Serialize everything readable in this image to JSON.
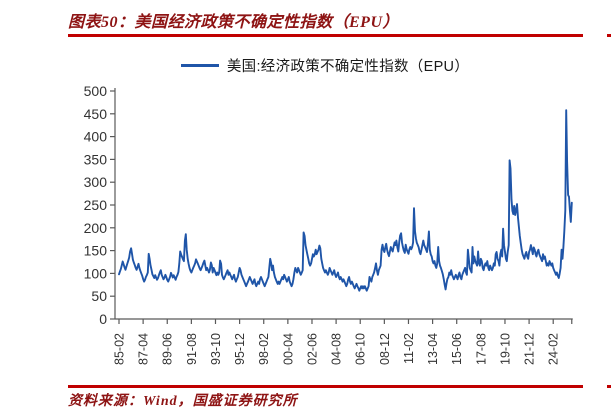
{
  "figure": {
    "title": "图表50：美国经济政策不确定性指数（EPU）",
    "source": "资料来源：Wind，国盛证券研究所"
  },
  "colors": {
    "rule_red": "#C00000",
    "title_red": "#8E1414",
    "line_blue": "#1F55A8",
    "axis_gray": "#595959",
    "label_color": "#333333"
  },
  "chart_data": {
    "type": "line",
    "title": "美国经济政策不确定性指数（EPU）",
    "legend": {
      "position": "top",
      "entries": [
        "美国:经济政策不确定性指数（EPU）"
      ]
    },
    "x_axis": {
      "start": "1985-02",
      "frequency": "monthly",
      "tick_interval_months": 26,
      "tick_labels": [
        "85-02",
        "87-04",
        "89-06",
        "91-08",
        "93-10",
        "95-12",
        "98-02",
        "00-04",
        "02-06",
        "04-08",
        "06-10",
        "08-12",
        "11-02",
        "13-04",
        "15-06",
        "17-08",
        "19-10",
        "21-12",
        "24-02"
      ]
    },
    "y_axis": {
      "min": 0,
      "max": 500,
      "tick_step": 50,
      "ticks": [
        0,
        50,
        100,
        150,
        200,
        250,
        300,
        350,
        400,
        450,
        500
      ]
    },
    "grid": false,
    "series": [
      {
        "name": "美国:经济政策不确定性指数（EPU）",
        "color": "#1F55A8",
        "values": [
          98,
          104,
          110,
          118,
          126,
          120,
          113,
          108,
          115,
          122,
          128,
          135,
          148,
          155,
          143,
          130,
          124,
          118,
          112,
          108,
          115,
          121,
          112,
          106,
          100,
          95,
          88,
          82,
          86,
          92,
          96,
          102,
          143,
          132,
          118,
          108,
          98,
          94,
          90,
          96,
          91,
          86,
          90,
          96,
          102,
          107,
          97,
          92,
          87,
          91,
          97,
          92,
          86,
          82,
          87,
          92,
          101,
          96,
          91,
          96,
          91,
          86,
          92,
          97,
          103,
          122,
          148,
          141,
          136,
          131,
          127,
          172,
          186,
          152,
          132,
          121,
          112,
          106,
          102,
          107,
          112,
          117,
          122,
          131,
          126,
          121,
          116,
          111,
          107,
          112,
          117,
          123,
          128,
          117,
          107,
          112,
          107,
          102,
          108,
          124,
          118,
          102,
          112,
          107,
          101,
          96,
          102,
          97,
          102,
          128,
          121,
          97,
          91,
          87,
          92,
          97,
          102,
          107,
          97,
          102,
          97,
          92,
          87,
          92,
          97,
          87,
          82,
          87,
          92,
          102,
          112,
          107,
          97,
          92,
          87,
          82,
          77,
          72,
          77,
          82,
          87,
          92,
          87,
          82,
          77,
          82,
          87,
          77,
          72,
          77,
          82,
          77,
          87,
          92,
          87,
          82,
          77,
          72,
          77,
          82,
          87,
          92,
          112,
          132,
          122,
          107,
          117,
          102,
          92,
          87,
          82,
          77,
          82,
          77,
          82,
          87,
          92,
          87,
          97,
          92,
          87,
          82,
          87,
          92,
          82,
          77,
          72,
          77,
          87,
          102,
          112,
          107,
          102,
          112,
          107,
          102,
          97,
          102,
          107,
          190,
          182,
          162,
          152,
          142,
          132,
          122,
          117,
          122,
          132,
          142,
          137,
          142,
          152,
          142,
          147,
          152,
          161,
          155,
          132,
          122,
          112,
          107,
          102,
          107,
          102,
          97,
          102,
          112,
          107,
          102,
          97,
          102,
          107,
          97,
          92,
          97,
          102,
          92,
          87,
          92,
          87,
          82,
          87,
          82,
          77,
          72,
          77,
          87,
          92,
          82,
          77,
          82,
          77,
          72,
          67,
          72,
          77,
          72,
          67,
          62,
          67,
          72,
          67,
          72,
          67,
          72,
          67,
          62,
          67,
          72,
          92,
          87,
          82,
          92,
          97,
          102,
          112,
          122,
          107,
          97,
          107,
          112,
          117,
          152,
          163,
          152,
          147,
          157,
          165,
          152,
          143,
          138,
          148,
          158,
          152,
          148,
          158,
          168,
          162,
          172,
          158,
          148,
          168,
          183,
          188,
          168,
          158,
          150,
          145,
          163,
          153,
          148,
          143,
          153,
          158,
          153,
          158,
          168,
          243,
          192,
          177,
          167,
          162,
          157,
          147,
          142,
          152,
          162,
          172,
          162,
          157,
          152,
          147,
          167,
          192,
          152,
          142,
          137,
          127,
          122,
          127,
          117,
          112,
          122,
          158,
          127,
          117,
          112,
          105,
          98,
          88,
          75,
          65,
          78,
          88,
          92,
          102,
          97,
          107,
          97,
          92,
          87,
          92,
          97,
          92,
          87,
          97,
          102,
          92,
          87,
          97,
          102,
          107,
          112,
          102,
          97,
          152,
          132,
          112,
          107,
          102,
          158,
          122,
          137,
          127,
          122,
          117,
          148,
          122,
          117,
          132,
          127,
          112,
          107,
          117,
          122,
          117,
          127,
          112,
          107,
          117,
          112,
          107,
          112,
          122,
          117,
          142,
          147,
          132,
          127,
          117,
          142,
          152,
          137,
          198,
          162,
          147,
          132,
          127,
          147,
          162,
          348,
          330,
          262,
          237,
          230,
          248,
          228,
          238,
          252,
          222,
          202,
          182,
          167,
          152,
          142,
          137,
          132,
          142,
          147,
          137,
          132,
          147,
          152,
          162,
          152,
          142,
          157,
          152,
          142,
          137,
          147,
          152,
          142,
          137,
          132,
          127,
          142,
          132,
          137,
          127,
          117,
          122,
          117,
          127,
          122,
          117,
          122,
          112,
          107,
          102,
          97,
          102,
          95,
          90,
          100,
          112,
          152,
          132,
          158,
          192,
          238,
          458,
          345,
          272,
          268,
          238,
          213,
          255
        ]
      }
    ]
  }
}
